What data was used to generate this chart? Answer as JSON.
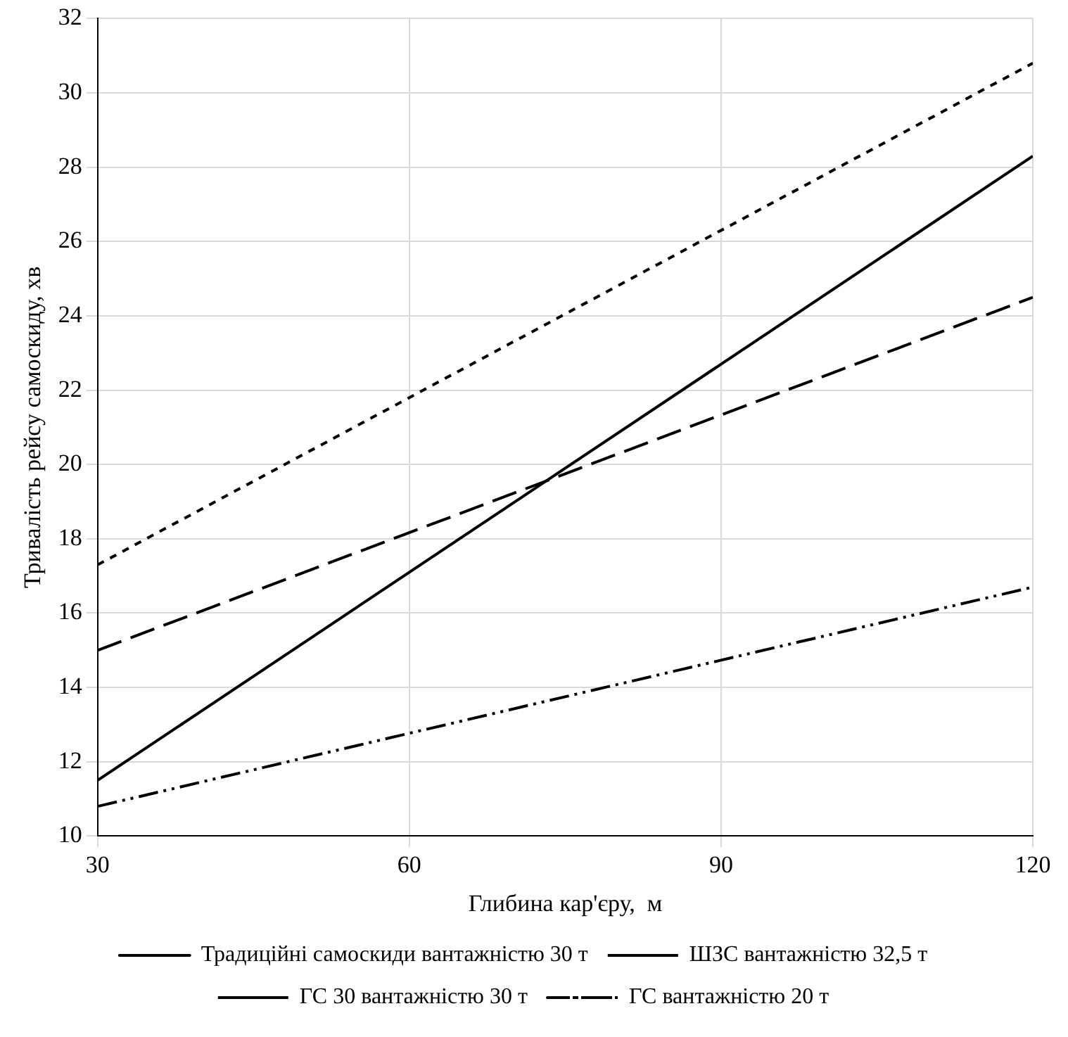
{
  "chart_data": {
    "type": "line",
    "xlabel": "Глибина кар'єру,  м",
    "ylabel": "Тривалість рейсу самоскиду, хв",
    "x": [
      30,
      120
    ],
    "xlim": [
      30,
      120
    ],
    "xticks": [
      30,
      60,
      90,
      120
    ],
    "ylim": [
      10,
      32
    ],
    "yticks": [
      10,
      12,
      14,
      16,
      18,
      20,
      22,
      24,
      26,
      28,
      30,
      32
    ],
    "grid": true,
    "legend": "bottom",
    "marker": "none",
    "series": [
      {
        "name": "Традиційні самоскиди вантажністю 30 т",
        "color": "#000000",
        "values": [
          11.5,
          28.3
        ],
        "line_style": "solid"
      },
      {
        "name": "ШЗС вантажністю 32,5 т",
        "color": "#000000",
        "values": [
          17.3,
          30.8
        ],
        "line_style": "dashed"
      },
      {
        "name": "ГС 30 вантажністю 30 т",
        "color": "#000000",
        "values": [
          15.0,
          24.5
        ],
        "line_style": "dashed"
      },
      {
        "name": "ГС вантажністю 20 т",
        "color": "#000000",
        "values": [
          10.8,
          16.7
        ],
        "line_style": "dotted"
      }
    ]
  }
}
